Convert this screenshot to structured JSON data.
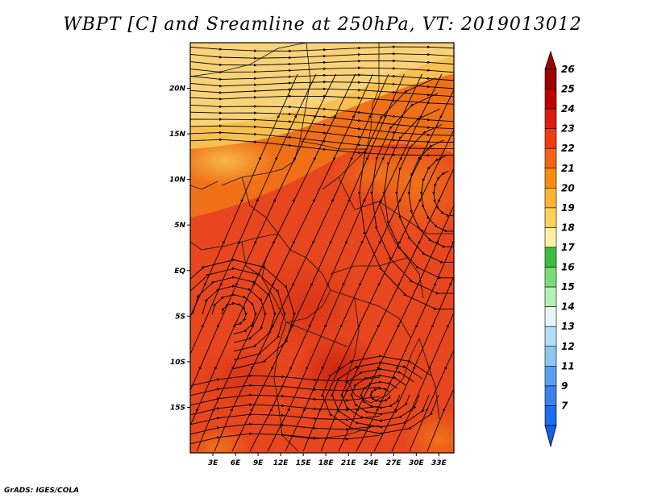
{
  "title": "WBPT [C] and Sreamline at 250hPa, VT: 2019013012",
  "footer": "GrADS: IGES/COLA",
  "map": {
    "lat_ticks": [
      {
        "label": "20N",
        "value": 20
      },
      {
        "label": "15N",
        "value": 15
      },
      {
        "label": "10N",
        "value": 10
      },
      {
        "label": "5N",
        "value": 5
      },
      {
        "label": "EQ",
        "value": 0
      },
      {
        "label": "5S",
        "value": -5
      },
      {
        "label": "10S",
        "value": -10
      },
      {
        "label": "15S",
        "value": -15
      }
    ],
    "lon_ticks": [
      {
        "label": "3E",
        "value": 3
      },
      {
        "label": "6E",
        "value": 6
      },
      {
        "label": "9E",
        "value": 9
      },
      {
        "label": "12E",
        "value": 12
      },
      {
        "label": "15E",
        "value": 15
      },
      {
        "label": "18E",
        "value": 18
      },
      {
        "label": "21E",
        "value": 21
      },
      {
        "label": "24E",
        "value": 24
      },
      {
        "label": "27E",
        "value": 27
      },
      {
        "label": "30E",
        "value": 30
      },
      {
        "label": "33E",
        "value": 33
      }
    ],
    "lon_range": [
      0,
      35
    ],
    "lat_range": [
      -20,
      25
    ]
  },
  "colorbar": {
    "levels": [
      {
        "label": "26",
        "color": "#a00000"
      },
      {
        "label": "25",
        "color": "#c00000"
      },
      {
        "label": "24",
        "color": "#dc1e10"
      },
      {
        "label": "23",
        "color": "#f03c10"
      },
      {
        "label": "22",
        "color": "#f56414"
      },
      {
        "label": "21",
        "color": "#f98c0a"
      },
      {
        "label": "20",
        "color": "#fab432"
      },
      {
        "label": "19",
        "color": "#fcd25a"
      },
      {
        "label": "18",
        "color": "#fcf0a0"
      },
      {
        "label": "17",
        "color": "#3cbe3c"
      },
      {
        "label": "16",
        "color": "#78dc78"
      },
      {
        "label": "15",
        "color": "#b4f0b4"
      },
      {
        "label": "14",
        "color": "#e6f5f5"
      },
      {
        "label": "13",
        "color": "#b4dcf5"
      },
      {
        "label": "12",
        "color": "#8cc8f0"
      },
      {
        "label": "11",
        "color": "#5aa0f0"
      },
      {
        "label": "9",
        "color": "#3c82f0"
      },
      {
        "label": "7",
        "color": "#1e6ef0"
      }
    ],
    "low_end_color": "#1460e6"
  }
}
